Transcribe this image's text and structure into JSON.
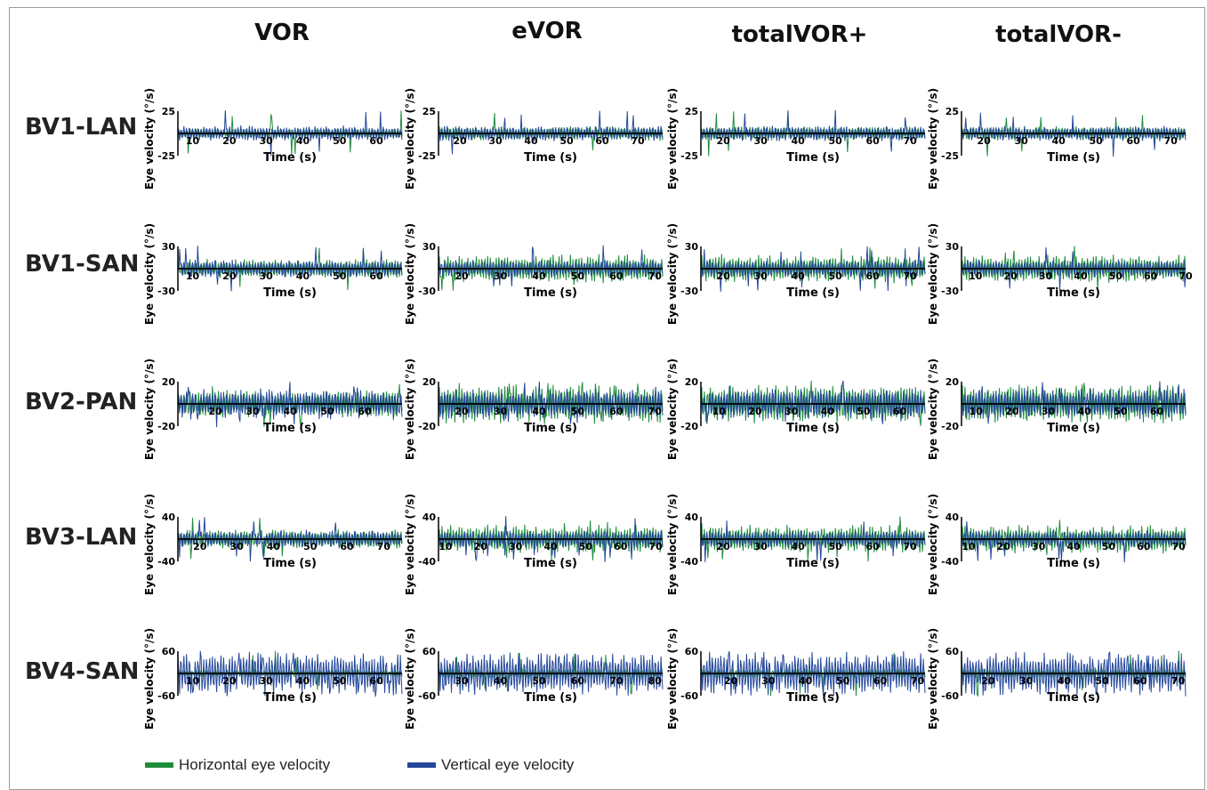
{
  "colors": {
    "horizontal": "#1f8c3c",
    "vertical": "#23479a",
    "axis": "#000000"
  },
  "columns": [
    "VOR",
    "eVOR",
    "totalVOR+",
    "totalVOR-"
  ],
  "rows": [
    "BV1-LAN",
    "BV1-SAN",
    "BV2-PAN",
    "BV3-LAN",
    "BV4-SAN"
  ],
  "axis_labels": {
    "y": "Eye velocity (°/s)",
    "x": "Time (s)"
  },
  "legend": {
    "horizontal": "Horizontal eye velocity",
    "vertical": "Vertical eye velocity"
  },
  "chart_data": [
    {
      "type": "line",
      "row": "BV1-LAN",
      "column": "VOR",
      "ylim": [
        -25,
        25
      ],
      "xlim": [
        6,
        67
      ],
      "xticks": [
        10,
        20,
        30,
        40,
        50,
        60
      ]
    },
    {
      "type": "line",
      "row": "BV1-LAN",
      "column": "eVOR",
      "ylim": [
        -25,
        25
      ],
      "xlim": [
        14,
        77
      ],
      "xticks": [
        20,
        30,
        40,
        50,
        60,
        70
      ]
    },
    {
      "type": "line",
      "row": "BV1-LAN",
      "column": "totalVOR+",
      "ylim": [
        -25,
        25
      ],
      "xlim": [
        14,
        74
      ],
      "xticks": [
        20,
        30,
        40,
        50,
        60,
        70
      ]
    },
    {
      "type": "line",
      "row": "BV1-LAN",
      "column": "totalVOR-",
      "ylim": [
        -25,
        25
      ],
      "xlim": [
        14,
        74
      ],
      "xticks": [
        20,
        30,
        40,
        50,
        60,
        70
      ]
    },
    {
      "type": "line",
      "row": "BV1-SAN",
      "column": "VOR",
      "ylim": [
        -30,
        30
      ],
      "xlim": [
        6,
        67
      ],
      "xticks": [
        10,
        20,
        30,
        40,
        50,
        60
      ]
    },
    {
      "type": "line",
      "row": "BV1-SAN",
      "column": "eVOR",
      "ylim": [
        -30,
        30
      ],
      "xlim": [
        14,
        72
      ],
      "xticks": [
        20,
        30,
        40,
        50,
        60,
        70
      ]
    },
    {
      "type": "line",
      "row": "BV1-SAN",
      "column": "totalVOR+",
      "ylim": [
        -30,
        30
      ],
      "xlim": [
        14,
        74
      ],
      "xticks": [
        20,
        30,
        40,
        50,
        60,
        70
      ]
    },
    {
      "type": "line",
      "row": "BV1-SAN",
      "column": "totalVOR-",
      "ylim": [
        -30,
        30
      ],
      "xlim": [
        6,
        70
      ],
      "xticks": [
        10,
        20,
        30,
        40,
        50,
        60,
        70
      ]
    },
    {
      "type": "line",
      "row": "BV2-PAN",
      "column": "VOR",
      "ylim": [
        -20,
        20
      ],
      "xlim": [
        10,
        70
      ],
      "xticks": [
        20,
        30,
        40,
        50,
        60
      ]
    },
    {
      "type": "line",
      "row": "BV2-PAN",
      "column": "eVOR",
      "ylim": [
        -20,
        20
      ],
      "xlim": [
        14,
        72
      ],
      "xticks": [
        20,
        30,
        40,
        50,
        60,
        70
      ]
    },
    {
      "type": "line",
      "row": "BV2-PAN",
      "column": "totalVOR+",
      "ylim": [
        -20,
        20
      ],
      "xlim": [
        5,
        67
      ],
      "xticks": [
        10,
        20,
        30,
        40,
        50,
        60
      ]
    },
    {
      "type": "line",
      "row": "BV2-PAN",
      "column": "totalVOR-",
      "ylim": [
        -20,
        20
      ],
      "xlim": [
        6,
        68
      ],
      "xticks": [
        10,
        20,
        30,
        40,
        50,
        60
      ]
    },
    {
      "type": "line",
      "row": "BV3-LAN",
      "column": "VOR",
      "ylim": [
        -40,
        40
      ],
      "xlim": [
        14,
        75
      ],
      "xticks": [
        20,
        30,
        40,
        50,
        60,
        70
      ]
    },
    {
      "type": "line",
      "row": "BV3-LAN",
      "column": "eVOR",
      "ylim": [
        -40,
        40
      ],
      "xlim": [
        8,
        72
      ],
      "xticks": [
        10,
        20,
        30,
        40,
        50,
        60,
        70
      ]
    },
    {
      "type": "line",
      "row": "BV3-LAN",
      "column": "totalVOR+",
      "ylim": [
        -40,
        40
      ],
      "xlim": [
        14,
        74
      ],
      "xticks": [
        20,
        30,
        40,
        50,
        60,
        70
      ]
    },
    {
      "type": "line",
      "row": "BV3-LAN",
      "column": "totalVOR-",
      "ylim": [
        -40,
        40
      ],
      "xlim": [
        8,
        72
      ],
      "xticks": [
        10,
        20,
        30,
        40,
        50,
        60,
        70
      ]
    },
    {
      "type": "line",
      "row": "BV4-SAN",
      "column": "VOR",
      "ylim": [
        -60,
        60
      ],
      "xlim": [
        6,
        67
      ],
      "xticks": [
        10,
        20,
        30,
        40,
        50,
        60
      ]
    },
    {
      "type": "line",
      "row": "BV4-SAN",
      "column": "eVOR",
      "ylim": [
        -60,
        60
      ],
      "xlim": [
        24,
        82
      ],
      "xticks": [
        30,
        40,
        50,
        60,
        70,
        80
      ]
    },
    {
      "type": "line",
      "row": "BV4-SAN",
      "column": "totalVOR+",
      "ylim": [
        -60,
        60
      ],
      "xlim": [
        12,
        72
      ],
      "xticks": [
        20,
        30,
        40,
        50,
        60,
        70
      ]
    },
    {
      "type": "line",
      "row": "BV4-SAN",
      "column": "totalVOR-",
      "ylim": [
        -60,
        60
      ],
      "xlim": [
        13,
        72
      ],
      "xticks": [
        20,
        30,
        40,
        50,
        60,
        70
      ]
    }
  ]
}
